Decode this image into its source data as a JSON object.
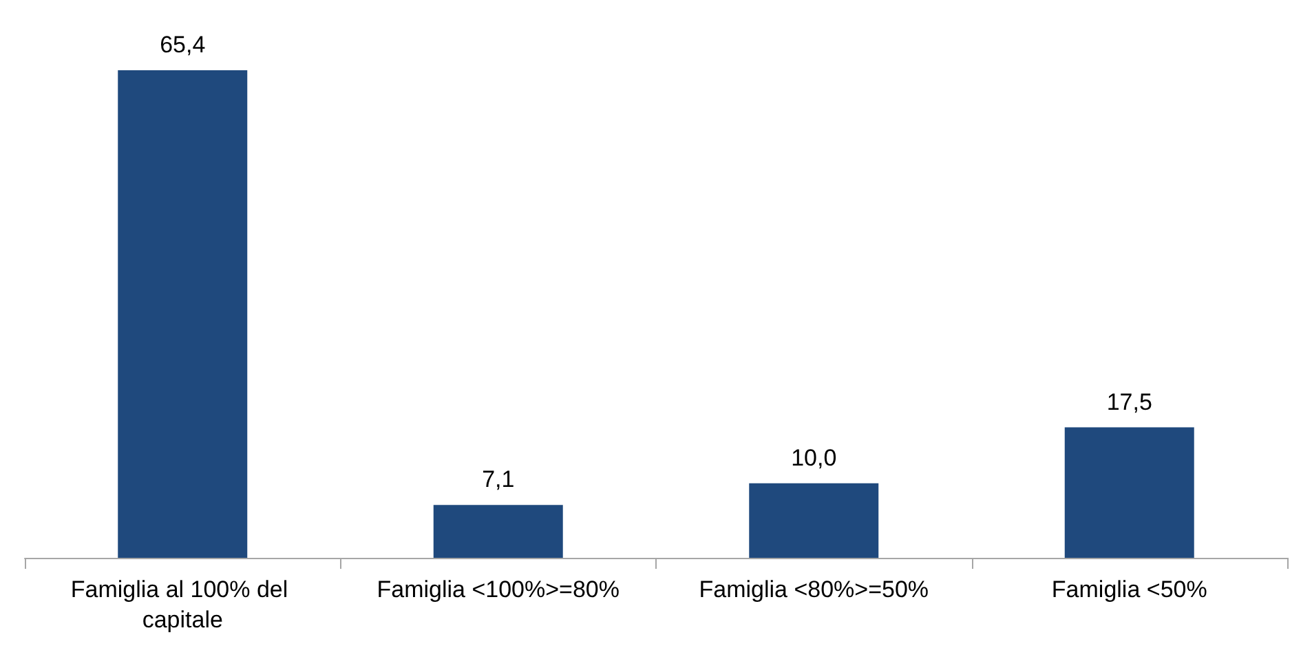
{
  "chart_data": {
    "type": "bar",
    "categories": [
      "Famiglia al 100% del capitale",
      "Famiglia <100%>=80%",
      "Famiglia <80%>=50%",
      "Famiglia <50%"
    ],
    "values": [
      65.4,
      7.1,
      10.0,
      17.5
    ],
    "value_labels": [
      "65,4",
      "7,1",
      "10,0",
      "17,5"
    ],
    "color": "#1f497d"
  }
}
